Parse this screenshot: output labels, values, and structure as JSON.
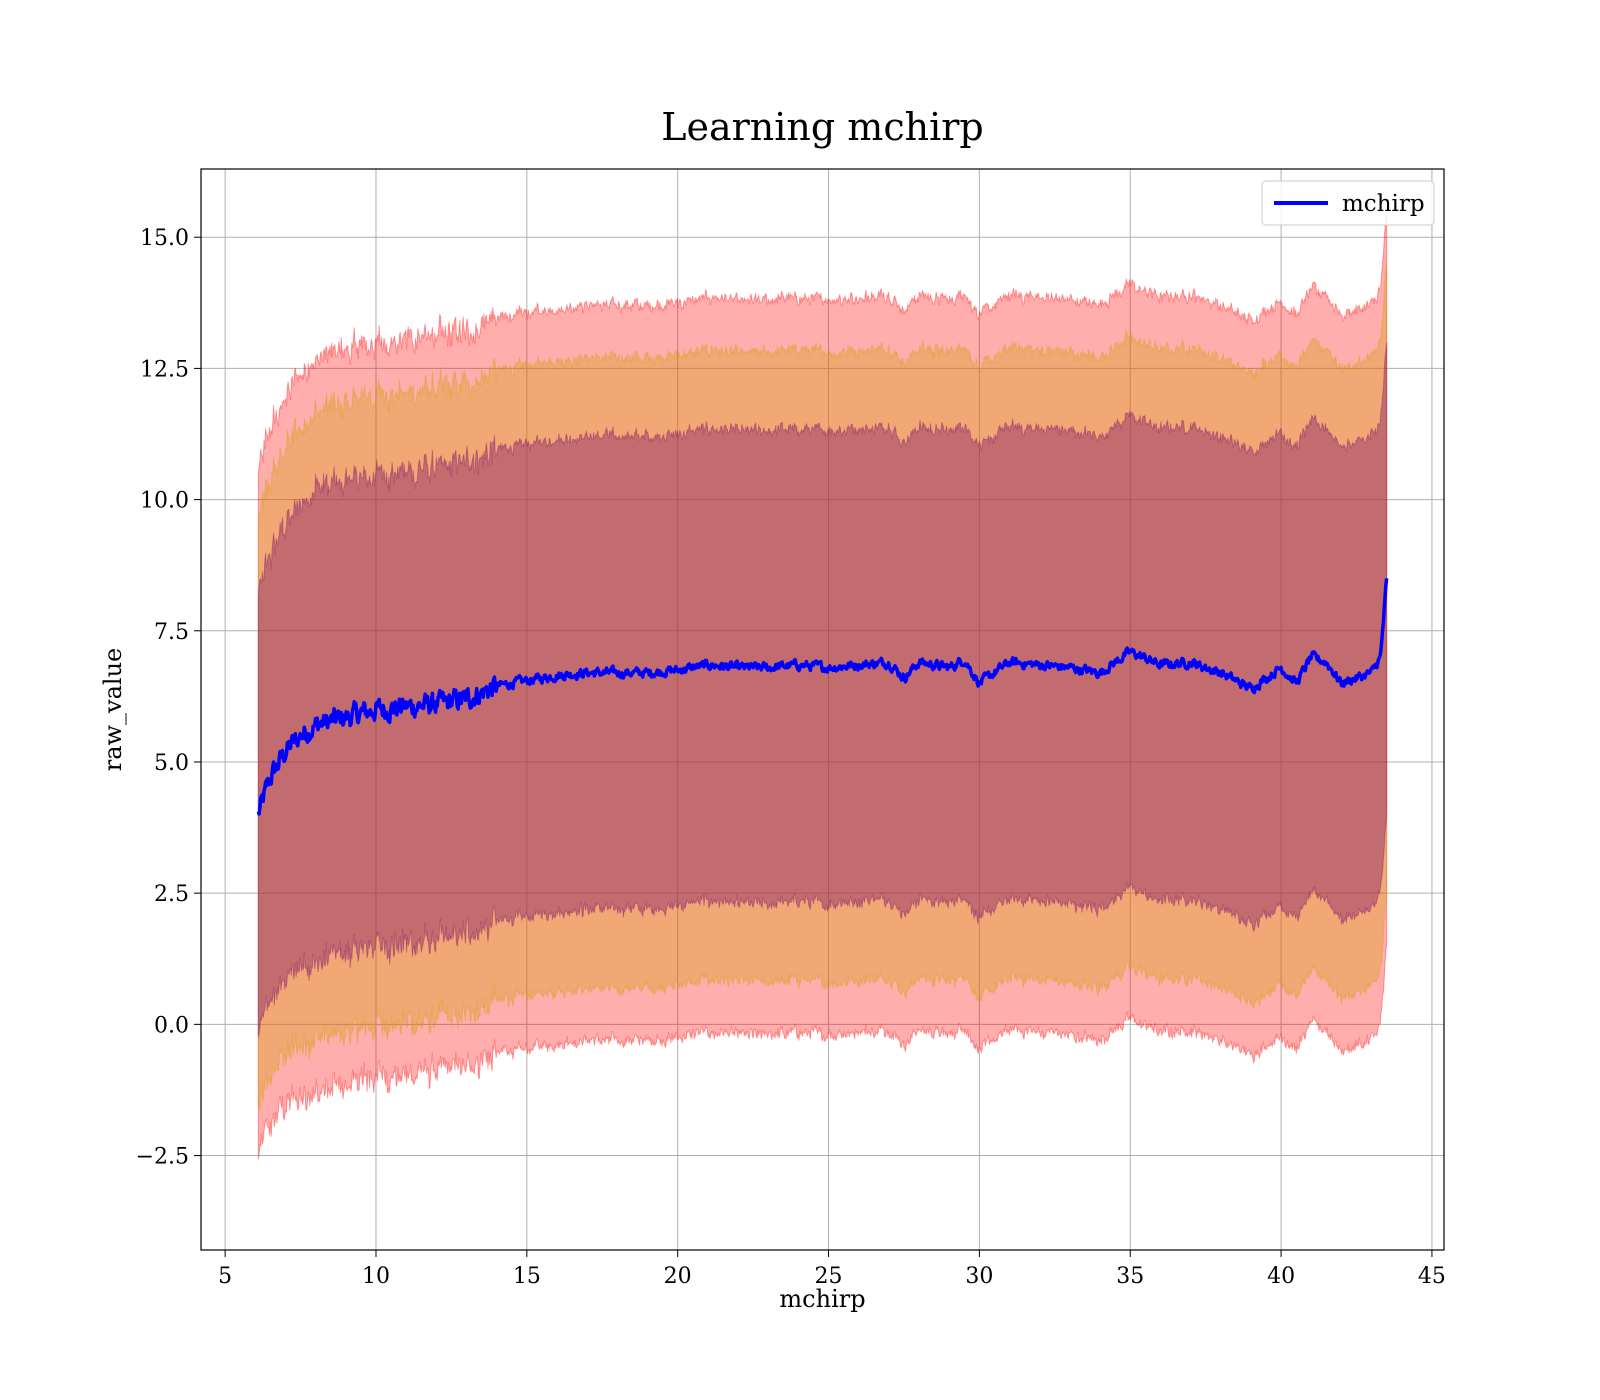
{
  "chart_data": {
    "type": "line",
    "title": "Learning mchirp",
    "xlabel": "mchirp",
    "ylabel": "raw_value",
    "xlim": [
      4.2,
      45.4
    ],
    "ylim": [
      -4.3,
      16.3
    ],
    "x_ticks": [
      5,
      10,
      15,
      20,
      25,
      30,
      35,
      40,
      45
    ],
    "x_tick_labels": [
      "5",
      "10",
      "15",
      "20",
      "25",
      "30",
      "35",
      "40",
      "45"
    ],
    "y_ticks": [
      -2.5,
      0.0,
      2.5,
      5.0,
      7.5,
      10.0,
      12.5,
      15.0
    ],
    "y_tick_labels": [
      "−2.5",
      "0.0",
      "2.5",
      "5.0",
      "7.5",
      "10.0",
      "12.5",
      "15.0"
    ],
    "grid": true,
    "legend": {
      "placement": "top-right",
      "entries": [
        "mchirp"
      ]
    },
    "colors": {
      "line": "#0000ff",
      "band_outer": "#ff0000",
      "band_middle": "#d2a000",
      "band_inner": "#7a0a6a"
    },
    "series": [
      {
        "name": "mchirp",
        "x": [
          6.1,
          6.5,
          7.0,
          7.5,
          8.0,
          9.0,
          10.0,
          11.0,
          12.0,
          13.0,
          14.0,
          15.0,
          16.0,
          17.0,
          18.0,
          19.0,
          20.0,
          21.0,
          22.0,
          23.0,
          24.0,
          25.0,
          26.0,
          27.0,
          27.5,
          28.0,
          29.0,
          29.5,
          30.0,
          31.0,
          32.0,
          33.0,
          34.0,
          35.0,
          36.0,
          37.0,
          38.0,
          39.0,
          40.0,
          40.5,
          41.0,
          41.5,
          42.0,
          43.0,
          43.3,
          43.5
        ],
        "y": [
          4.0,
          4.7,
          5.2,
          5.5,
          5.7,
          5.85,
          6.0,
          6.05,
          6.1,
          6.2,
          6.45,
          6.55,
          6.65,
          6.7,
          6.7,
          6.7,
          6.75,
          6.85,
          6.8,
          6.8,
          6.85,
          6.8,
          6.85,
          6.9,
          6.6,
          6.9,
          6.8,
          6.95,
          6.5,
          6.9,
          6.85,
          6.8,
          6.7,
          7.1,
          6.85,
          6.9,
          6.7,
          6.4,
          6.8,
          6.5,
          7.0,
          6.9,
          6.5,
          6.7,
          7.0,
          8.5
        ]
      }
    ],
    "bands": [
      {
        "level": "outer",
        "half_width": 7.0
      },
      {
        "level": "middle",
        "half_width": 6.0
      },
      {
        "level": "inner",
        "half_width": 4.5
      }
    ]
  }
}
